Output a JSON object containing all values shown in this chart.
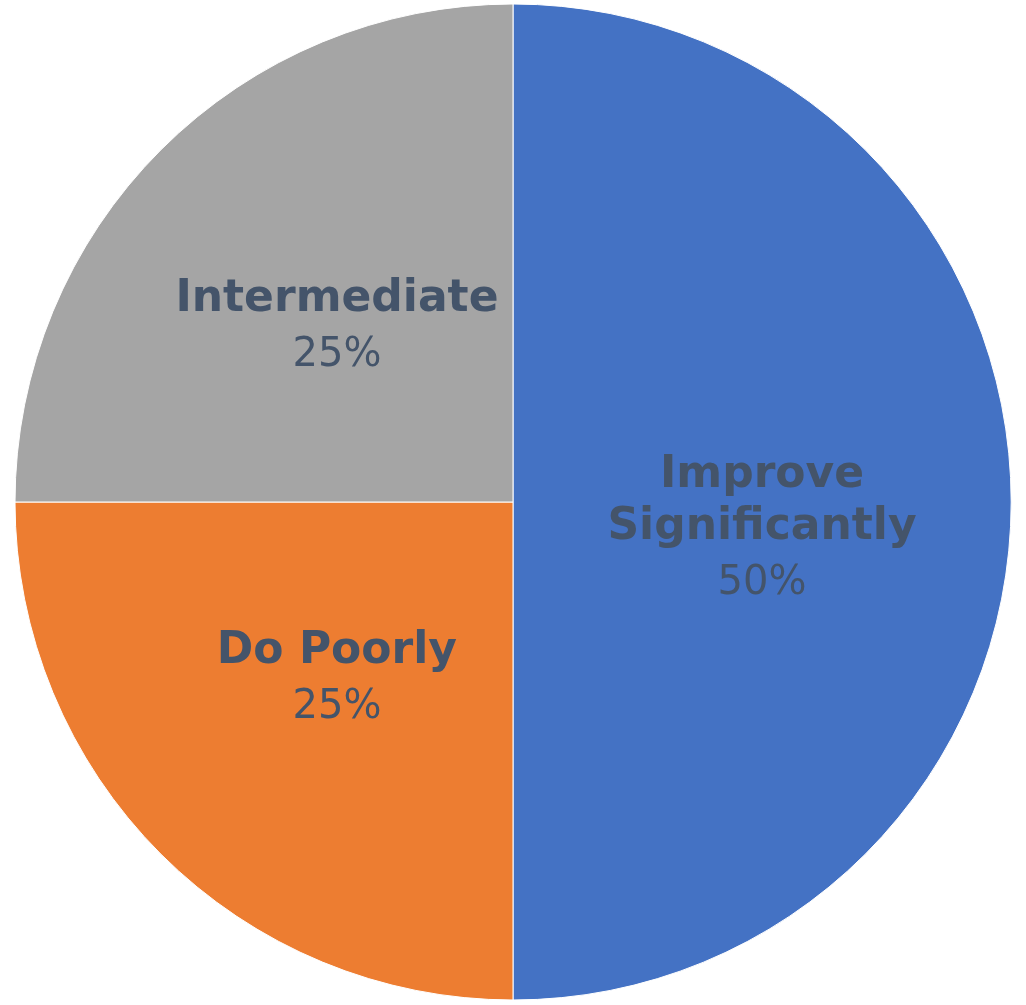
{
  "chart_data": {
    "type": "pie",
    "categories": [
      "Improve Significantly",
      "Do Poorly",
      "Intermediate"
    ],
    "values": [
      50,
      25,
      25
    ],
    "value_labels": [
      "50%",
      "25%",
      "25%"
    ],
    "colors": [
      "#4472c4",
      "#ed7d31",
      "#a5a5a5"
    ],
    "legend": false
  }
}
